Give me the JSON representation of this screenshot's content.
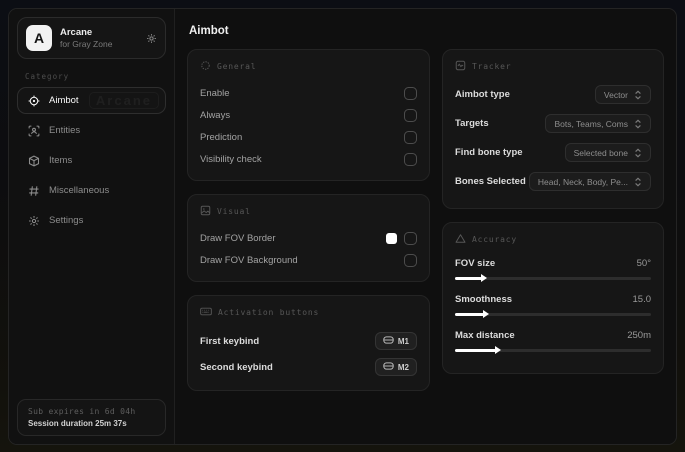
{
  "app": {
    "logo_letter": "A",
    "name": "Arcane",
    "subtitle": "for Gray Zone"
  },
  "sidebar": {
    "category_label": "Category",
    "watermark": "Arcane",
    "items": [
      {
        "label": "Aimbot"
      },
      {
        "label": "Entities"
      },
      {
        "label": "Items"
      },
      {
        "label": "Miscellaneous"
      },
      {
        "label": "Settings"
      }
    ],
    "footer": {
      "expiry": "Sub expires in 6d 04h",
      "session": "Session duration 25m 37s"
    }
  },
  "main": {
    "title": "Aimbot",
    "general": {
      "title": "General",
      "toggles": [
        {
          "label": "Enable",
          "checked": false
        },
        {
          "label": "Always",
          "checked": false
        },
        {
          "label": "Prediction",
          "checked": false
        },
        {
          "label": "Visibility check",
          "checked": false
        }
      ]
    },
    "visual": {
      "title": "Visual",
      "toggles": [
        {
          "label": "Draw FOV Border",
          "swatch": "#ffffff",
          "checked": false
        },
        {
          "label": "Draw FOV Background",
          "checked": false
        }
      ]
    },
    "activation": {
      "title": "Activation buttons",
      "rows": [
        {
          "label": "First keybind",
          "key": "M1"
        },
        {
          "label": "Second keybind",
          "key": "M2"
        }
      ]
    },
    "tracker": {
      "title": "Tracker",
      "rows": [
        {
          "label": "Aimbot type",
          "value": "Vector"
        },
        {
          "label": "Targets",
          "value": "Bots, Teams, Coms"
        },
        {
          "label": "Find bone type",
          "value": "Selected bone"
        },
        {
          "label": "Bones Selected",
          "value": "Head, Neck, Body, Pe..."
        }
      ]
    },
    "accuracy": {
      "title": "Accuracy",
      "sliders": [
        {
          "label": "FOV size",
          "value": "50°",
          "percent": 14
        },
        {
          "label": "Smoothness",
          "value": "15.0",
          "percent": 15
        },
        {
          "label": "Max distance",
          "value": "250m",
          "percent": 21
        }
      ]
    }
  },
  "colors": {
    "swatch_fov_border": "#ffffff",
    "slider_fill": "#ffffff",
    "card_bg": "#161616",
    "window_bg": "#101010"
  }
}
